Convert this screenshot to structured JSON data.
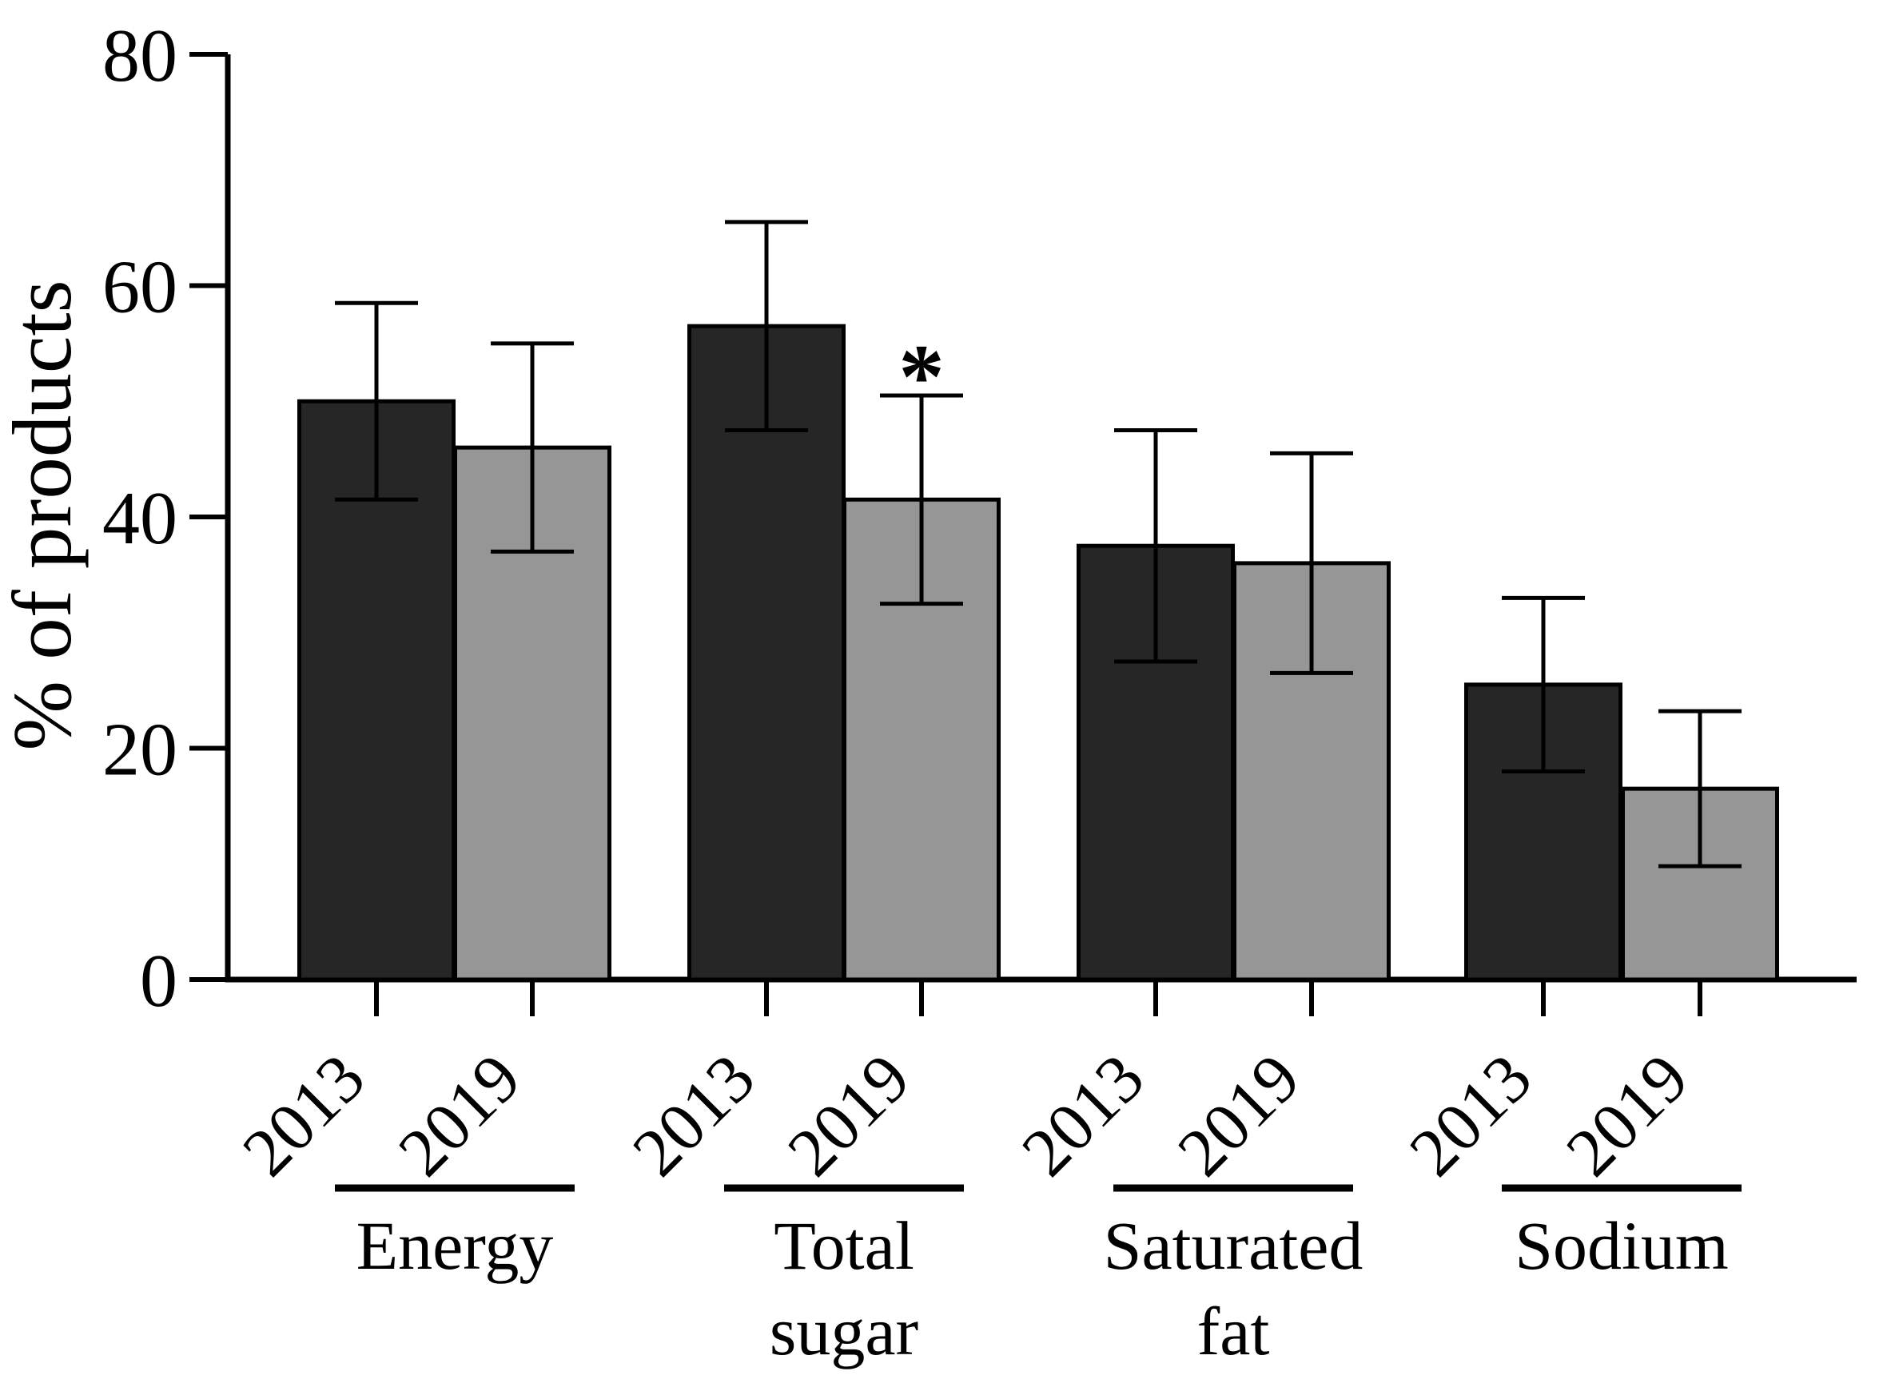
{
  "chart_data": {
    "type": "bar",
    "title": "",
    "ylabel": "% of products",
    "xlabel": "",
    "ylim": [
      0,
      80
    ],
    "yticks": [
      0,
      20,
      40,
      60,
      80
    ],
    "grid": false,
    "legend_position": "none",
    "background": "#ffffff",
    "axis_color": "#000000",
    "categories": [
      "Energy",
      "Total sugar",
      "Saturated fat",
      "Sodium"
    ],
    "series": [
      {
        "name": "2013",
        "color": "#262626",
        "values": [
          50,
          56.5,
          37.5,
          25.5
        ],
        "errors": [
          8.5,
          9,
          10,
          7.5
        ]
      },
      {
        "name": "2019",
        "color": "#969696",
        "values": [
          46,
          41.5,
          36,
          16.5
        ],
        "errors": [
          9,
          9,
          9.5,
          6.7
        ]
      }
    ],
    "error_bar_style": "symmetric capped whiskers",
    "annotations": [
      {
        "text": "*",
        "category": "Total sugar",
        "series": "2019",
        "position": "above-error-bar"
      }
    ]
  }
}
